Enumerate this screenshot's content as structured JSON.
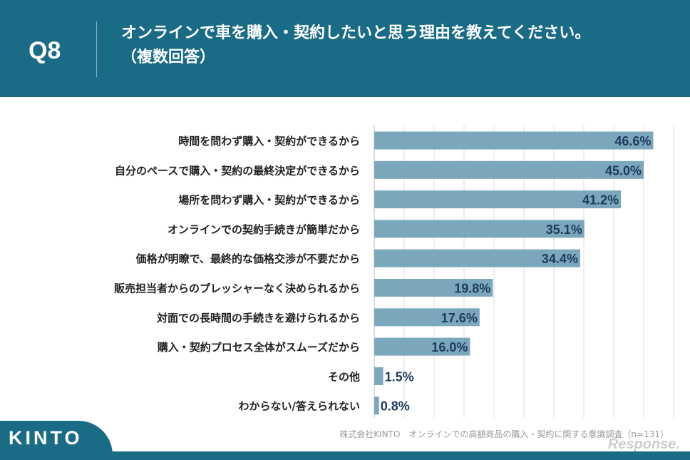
{
  "header": {
    "question_number": "Q8",
    "title_line1": "オンラインで車を購入・契約したいと思う理由を教えてください。",
    "title_line2": "（複数回答）"
  },
  "brand": {
    "logo_text": "KINTO"
  },
  "source": "株式会社KINTO　オンラインでの高額商品の購入・契約に関する意識調査（n=131）",
  "watermark": "Response.",
  "colors": {
    "bar": "#7ba7bd",
    "label_text": "#1d3a5f",
    "header_bg": "#1a6b85",
    "grid": "#dddddd"
  },
  "chart_data": {
    "type": "bar",
    "orientation": "horizontal",
    "categories": [
      "時間を問わず購入・契約ができるから",
      "自分のペースで購入・契約の最終決定ができるから",
      "場所を問わず購入・契約ができるから",
      "オンラインでの契約手続きが簡単だから",
      "価格が明瞭で、最終的な価格交渉が不要だから",
      "販売担当者からのプレッシャーなく決められるから",
      "対面での長時間の手続きを避けられるから",
      "購入・契約プロセス全体がスムーズだから",
      "その他",
      "わからない/答えられない"
    ],
    "values": [
      46.6,
      45.0,
      41.2,
      35.1,
      34.4,
      19.8,
      17.6,
      16.0,
      1.5,
      0.8
    ],
    "value_labels": [
      "46.6%",
      "45.0%",
      "41.2%",
      "35.1%",
      "34.4%",
      "19.8%",
      "17.6%",
      "16.0%",
      "1.5%",
      "0.8%"
    ],
    "xlim": [
      0,
      50
    ],
    "grid": true,
    "unit": "%"
  }
}
